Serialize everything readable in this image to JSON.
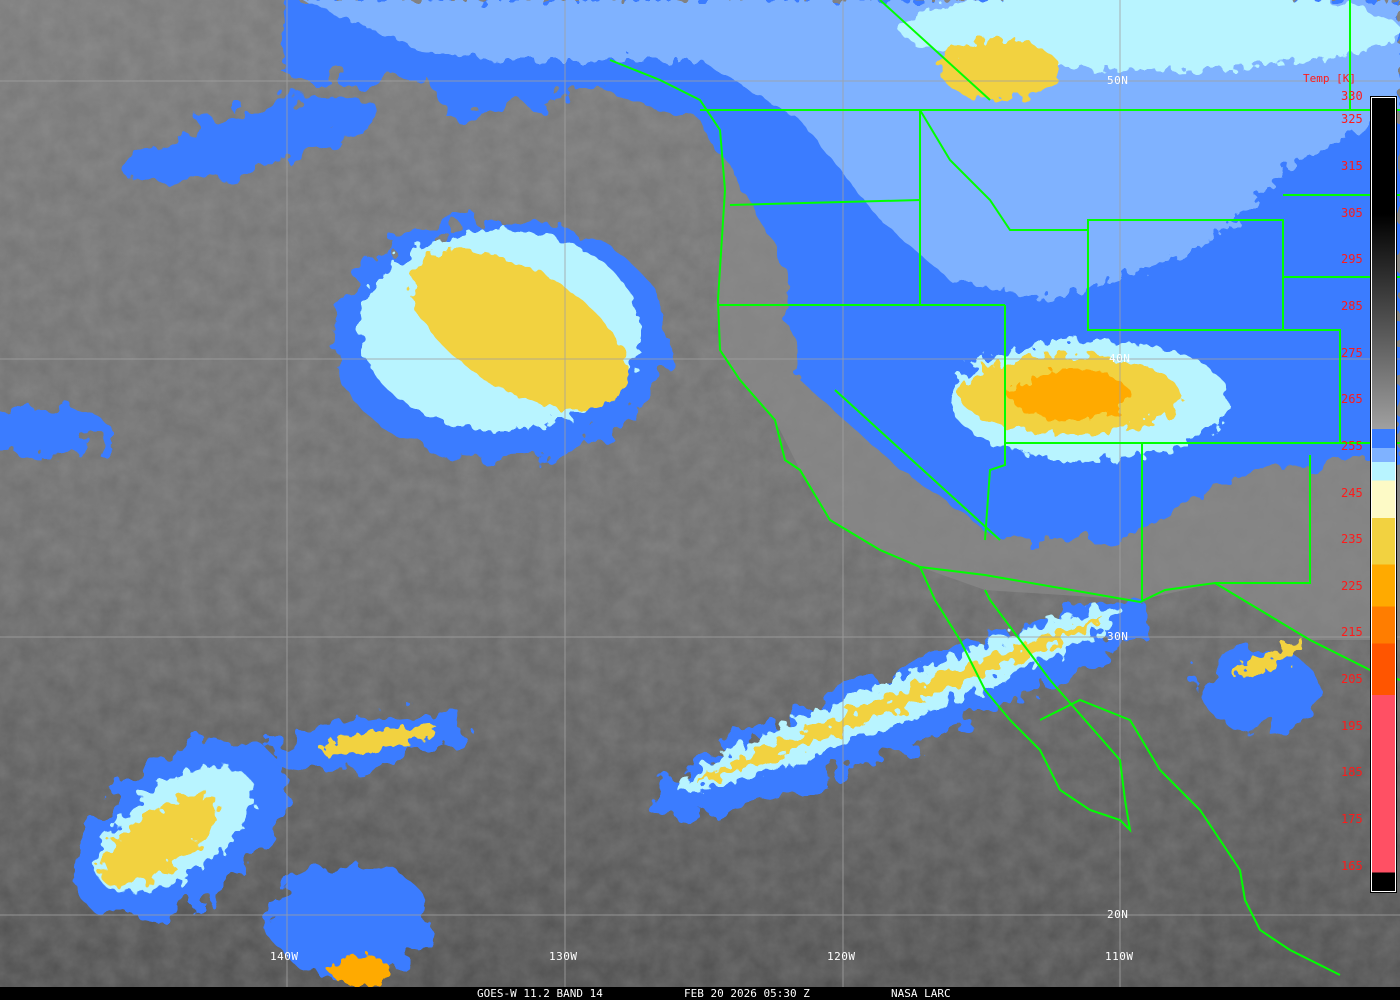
{
  "caption": {
    "satellite": "GOES-W 11.2 BAND 14",
    "datetime": "FEB 20 2026 05:30 Z",
    "source": "NASA LARC"
  },
  "grid": {
    "lat_labels": [
      "50N",
      "40N",
      "30N",
      "20N"
    ],
    "lon_labels": [
      "140W",
      "130W",
      "120W",
      "110W"
    ]
  },
  "legend": {
    "title": "Temp [K]",
    "ticks": [
      "330",
      "325",
      "315",
      "305",
      "295",
      "285",
      "275",
      "265",
      "255",
      "245",
      "235",
      "225",
      "215",
      "205",
      "195",
      "185",
      "175",
      "165"
    ],
    "range_k": [
      160,
      330
    ],
    "color_stops": [
      {
        "from": 330,
        "to": 259,
        "color": "gradient #000000 to #a0a0a0"
      },
      {
        "from": 259,
        "to": 255,
        "color": "#3a7cff"
      },
      {
        "from": 255,
        "to": 252,
        "color": "#7fb2ff"
      },
      {
        "from": 252,
        "to": 248,
        "color": "#b8f4ff"
      },
      {
        "from": 248,
        "to": 240,
        "color": "#fdfac6"
      },
      {
        "from": 240,
        "to": 230,
        "color": "#f2d240"
      },
      {
        "from": 230,
        "to": 221,
        "color": "#ffaa00"
      },
      {
        "from": 221,
        "to": 213,
        "color": "#ff7d00"
      },
      {
        "from": 213,
        "to": 202,
        "color": "#ff5500"
      },
      {
        "from": 202,
        "to": 164,
        "color": "#ff5064"
      },
      {
        "from": 164,
        "to": 160,
        "color": "#000000"
      }
    ]
  },
  "colors": {
    "border_lines": "#00ff00",
    "grid_lines": "#a0a0a0",
    "tick_text": "#ff1a1a"
  }
}
